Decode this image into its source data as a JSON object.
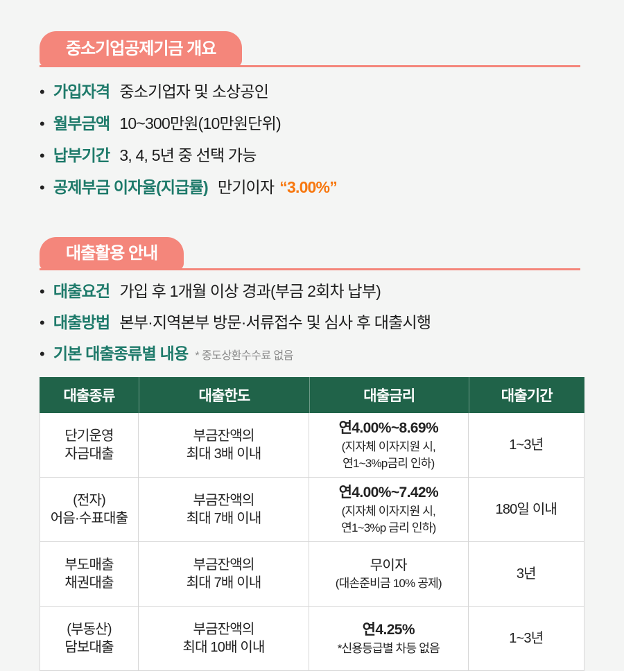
{
  "colors": {
    "accent_pink": "#F4867B",
    "label_green": "#1E7A6A",
    "highlight_orange": "#F7770F",
    "table_header_green": "#206349",
    "page_bg": "#F4F5F4"
  },
  "section_overview": {
    "badge": "중소기업공제기금 개요",
    "items": [
      {
        "label": "가입자격",
        "value": "중소기업자 및 소상공인"
      },
      {
        "label": "월부금액",
        "value": "10~300만원(10만원단위)"
      },
      {
        "label": "납부기간",
        "value": "3, 4, 5년 중 선택 가능"
      },
      {
        "label": "공제부금 이자율(지급률)",
        "value": "만기이자",
        "highlight": "“3.00%”"
      }
    ]
  },
  "section_loan": {
    "badge": "대출활용 안내",
    "items": [
      {
        "label": "대출요건",
        "value": "가입 후 1개월 이상 경과(부금 2회차 납부)"
      },
      {
        "label": "대출방법",
        "value": "본부·지역본부 방문·서류접수 및 심사 후 대출시행"
      },
      {
        "label": "기본 대출종류별 내용",
        "note": "* 중도상환수수료 없음"
      }
    ]
  },
  "table": {
    "headers": [
      "대출종류",
      "대출한도",
      "대출금리",
      "대출기간"
    ],
    "rows": [
      {
        "type_line1": "단기운영",
        "type_line2": "자금대출",
        "limit_line1": "부금잔액의",
        "limit_line2": "최대 3배 이내",
        "rate_main": "연4.00%~8.69%",
        "rate_sub1": "(지자체 이자지원 시,",
        "rate_sub2": "연1~3%p금리 인하)",
        "period": "1~3년"
      },
      {
        "type_line1": "(전자)",
        "type_line2": "어음·수표대출",
        "limit_line1": "부금잔액의",
        "limit_line2": "최대 7배 이내",
        "rate_main": "연4.00%~7.42%",
        "rate_sub1": "(지자체 이자지원 시,",
        "rate_sub2": "연1~3%p 금리 인하)",
        "period": "180일 이내"
      },
      {
        "type_line1": "부도매출",
        "type_line2": "채권대출",
        "limit_line1": "부금잔액의",
        "limit_line2": "최대 7배 이내",
        "rate_main": "무이자",
        "rate_sub1": "(대손준비금 10% 공제)",
        "period": "3년"
      },
      {
        "type_line1": "(부동산)",
        "type_line2": "담보대출",
        "limit_line1": "부금잔액의",
        "limit_line2": "최대 10배 이내",
        "rate_main": "연4.25%",
        "rate_sub1": "*신용등급별 차등 없음",
        "period": "1~3년"
      }
    ]
  }
}
